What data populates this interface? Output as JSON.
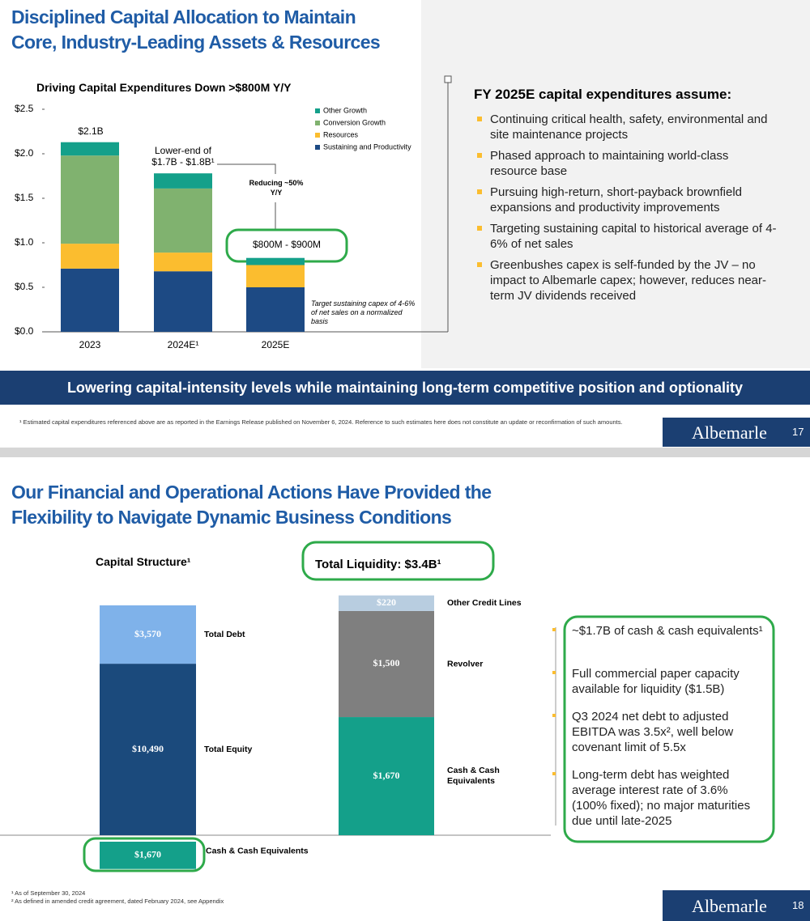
{
  "slides": [
    {
      "title_lines": [
        "Disciplined Capital Allocation to Maintain",
        "Core, Industry-Leading Assets & Resources"
      ],
      "bullets_heading": "FY 2025E capital expenditures assume:",
      "bullets": [
        "Continuing critical health, safety, environmental and site maintenance projects",
        "Phased approach to maintaining world-class resource base",
        "Pursuing high-return, short-payback brownfield expansions and productivity improvements",
        "Targeting sustaining capital to historical average of 4-6% of net sales",
        "Greenbushes capex is self-funded by the JV – no impact to Albemarle capex; however, reduces near-term JV dividends received"
      ],
      "banner": "Lowering capital-intensity levels while maintaining long-term competitive position and optionality",
      "footnote": "¹ Estimated capital expenditures referenced above are as reported in the Earnings Release published on November 6, 2024. Reference to such estimates here does not constitute an update or reconfirmation of such amounts.",
      "logo": "Albemarle",
      "page": "17"
    },
    {
      "title_lines": [
        "Our Financial and Operational Actions Have Provided the",
        "Flexibility to Navigate Dynamic Business Conditions"
      ],
      "bullets": [
        "~$1.7B of cash & cash equivalents¹",
        "Full commercial paper capacity available for liquidity ($1.5B)",
        "Q3 2024 net debt to adjusted EBITDA was 3.5x², well below covenant limit of 5.5x",
        "Long-term debt has weighted average interest rate of 3.6% (100% fixed); no major maturities due until late-2025"
      ],
      "footnotes": [
        "¹ As of September 30, 2024",
        "² As defined in amended credit agreement, dated February 2024, see Appendix"
      ],
      "logo": "Albemarle",
      "page": "18"
    }
  ],
  "chart_data": [
    {
      "type": "bar",
      "stacked": true,
      "title": "Driving Capital Expenditures Down >$800M Y/Y",
      "categories": [
        "2023",
        "2024E¹",
        "2025E"
      ],
      "series": [
        {
          "name": "Sustaining and Productivity",
          "color": "#1d4a84",
          "values": [
            0.71,
            0.68,
            0.5
          ]
        },
        {
          "name": "Resources",
          "color": "#fbbd2f",
          "values": [
            0.28,
            0.21,
            0.25
          ]
        },
        {
          "name": "Conversion Growth",
          "color": "#80b26f",
          "values": [
            0.99,
            0.72,
            0
          ]
        },
        {
          "name": "Other Growth",
          "color": "#14a08a",
          "values": [
            0.15,
            0.17,
            0.08
          ]
        }
      ],
      "ylim": [
        0,
        2.5
      ],
      "yticks": [
        {
          "value": 0,
          "label": "$0.0"
        },
        {
          "value": 0.5,
          "label": "$0.5"
        },
        {
          "value": 1,
          "label": "$1.0"
        },
        {
          "value": 1.5,
          "label": "$1.5"
        },
        {
          "value": 2,
          "label": "$2.0"
        },
        {
          "value": 2.5,
          "label": "$2.5"
        }
      ],
      "annotations": [
        "$2.1B",
        "Lower-end of $1.7B - $1.8B¹",
        "Reducing ~50% Y/Y",
        "$800M - $900M",
        "Target sustaining capex of 4-6% of net sales on a normalized basis"
      ],
      "legend": "top-right"
    },
    {
      "type": "bar",
      "stacked": true,
      "title": "Capital Structure¹",
      "series": [
        {
          "name": "Cash & Cash Equivalents",
          "color": "#14a08a",
          "values": [
            1670
          ],
          "value_labels": [
            "$1,670"
          ],
          "position": "below"
        },
        {
          "name": "Total Equity",
          "color": "#1b4a7c",
          "values": [
            10490
          ],
          "value_labels": [
            "$10,490"
          ]
        },
        {
          "name": "Total Debt",
          "color": "#7fb2ea",
          "values": [
            3570
          ],
          "value_labels": [
            "$3,570"
          ]
        }
      ]
    },
    {
      "type": "bar",
      "stacked": true,
      "title": "Total Liquidity: $3.4B¹",
      "series": [
        {
          "name": "Cash & Cash Equivalents",
          "color": "#14a08a",
          "values": [
            1670
          ],
          "value_labels": [
            "$1,670"
          ]
        },
        {
          "name": "Revolver",
          "color": "#7f7f7f",
          "values": [
            1500
          ],
          "value_labels": [
            "$1,500"
          ]
        },
        {
          "name": "Other Credit Lines",
          "color": "#b8cde0",
          "values": [
            220
          ],
          "value_labels": [
            "$220"
          ]
        }
      ]
    }
  ]
}
